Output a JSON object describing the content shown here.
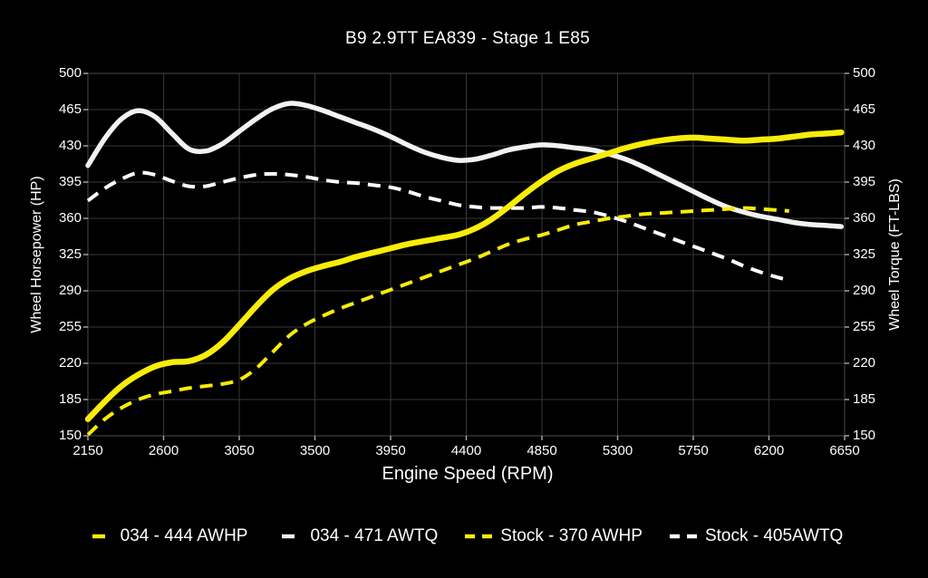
{
  "chart_data": {
    "type": "line",
    "title": "B9 2.9TT EA839 - Stage 1 E85",
    "xlabel": "Engine Speed (RPM)",
    "ylabel_left": "Wheel Horsepower (HP)",
    "ylabel_right": "Wheel Torque (FT-LBS)",
    "xlim": [
      2150,
      6650
    ],
    "ylim": [
      150,
      500
    ],
    "x_ticks": [
      2150,
      2600,
      3050,
      3500,
      3950,
      4400,
      4850,
      5300,
      5750,
      6200,
      6650
    ],
    "y_ticks": [
      500,
      465,
      430,
      395,
      360,
      325,
      290,
      255,
      220,
      185,
      150
    ],
    "grid": true,
    "legend_position": "bottom",
    "background": "#000000",
    "colors": {
      "grid": "#383838",
      "border": "#4a4a4a",
      "tick": "#aaaaaa",
      "text": "#ffffff",
      "yellow": "#f7ec0a",
      "white": "#f2f2f2"
    },
    "series": [
      {
        "name": "034 - 444 AWHP",
        "color": "#f7ec0a",
        "style": "solid",
        "width": 6.5,
        "points": [
          [
            2150,
            166
          ],
          [
            2250,
            183
          ],
          [
            2350,
            198
          ],
          [
            2450,
            209
          ],
          [
            2550,
            217
          ],
          [
            2650,
            221
          ],
          [
            2750,
            222
          ],
          [
            2850,
            228
          ],
          [
            2950,
            240
          ],
          [
            3050,
            257
          ],
          [
            3150,
            275
          ],
          [
            3250,
            291
          ],
          [
            3350,
            302
          ],
          [
            3450,
            309
          ],
          [
            3550,
            314
          ],
          [
            3650,
            318
          ],
          [
            3750,
            323
          ],
          [
            3850,
            327
          ],
          [
            3950,
            331
          ],
          [
            4050,
            335
          ],
          [
            4150,
            338
          ],
          [
            4250,
            341
          ],
          [
            4350,
            344
          ],
          [
            4450,
            350
          ],
          [
            4550,
            359
          ],
          [
            4650,
            371
          ],
          [
            4750,
            384
          ],
          [
            4850,
            396
          ],
          [
            4950,
            406
          ],
          [
            5050,
            413
          ],
          [
            5150,
            418
          ],
          [
            5250,
            423
          ],
          [
            5350,
            428
          ],
          [
            5450,
            432
          ],
          [
            5550,
            435
          ],
          [
            5650,
            437
          ],
          [
            5750,
            438
          ],
          [
            5850,
            437
          ],
          [
            5950,
            436
          ],
          [
            6050,
            435
          ],
          [
            6150,
            436
          ],
          [
            6250,
            437
          ],
          [
            6350,
            439
          ],
          [
            6450,
            441
          ],
          [
            6550,
            442
          ],
          [
            6630,
            443
          ]
        ]
      },
      {
        "name": "034 - 471 AWTQ",
        "color": "#f2f2f2",
        "style": "solid",
        "width": 5.5,
        "points": [
          [
            2150,
            411
          ],
          [
            2250,
            437
          ],
          [
            2350,
            456
          ],
          [
            2450,
            464
          ],
          [
            2550,
            458
          ],
          [
            2650,
            442
          ],
          [
            2750,
            427
          ],
          [
            2850,
            425
          ],
          [
            2950,
            432
          ],
          [
            3050,
            444
          ],
          [
            3150,
            456
          ],
          [
            3250,
            466
          ],
          [
            3350,
            471
          ],
          [
            3450,
            469
          ],
          [
            3550,
            464
          ],
          [
            3650,
            458
          ],
          [
            3750,
            452
          ],
          [
            3850,
            446
          ],
          [
            3950,
            439
          ],
          [
            4050,
            431
          ],
          [
            4150,
            424
          ],
          [
            4250,
            419
          ],
          [
            4350,
            416
          ],
          [
            4450,
            417
          ],
          [
            4550,
            421
          ],
          [
            4650,
            426
          ],
          [
            4750,
            429
          ],
          [
            4850,
            431
          ],
          [
            4950,
            430
          ],
          [
            5050,
            428
          ],
          [
            5150,
            426
          ],
          [
            5250,
            422
          ],
          [
            5350,
            417
          ],
          [
            5450,
            410
          ],
          [
            5550,
            402
          ],
          [
            5650,
            394
          ],
          [
            5750,
            386
          ],
          [
            5850,
            378
          ],
          [
            5950,
            371
          ],
          [
            6050,
            366
          ],
          [
            6150,
            362
          ],
          [
            6250,
            359
          ],
          [
            6350,
            356
          ],
          [
            6450,
            354
          ],
          [
            6550,
            353
          ],
          [
            6630,
            352
          ]
        ]
      },
      {
        "name": "Stock - 370 AWHP",
        "color": "#f7ec0a",
        "style": "dashed",
        "width": 4,
        "points": [
          [
            2150,
            151
          ],
          [
            2250,
            166
          ],
          [
            2350,
            177
          ],
          [
            2450,
            185
          ],
          [
            2550,
            190
          ],
          [
            2650,
            193
          ],
          [
            2750,
            196
          ],
          [
            2850,
            198
          ],
          [
            2950,
            200
          ],
          [
            3050,
            204
          ],
          [
            3150,
            215
          ],
          [
            3250,
            231
          ],
          [
            3350,
            247
          ],
          [
            3450,
            258
          ],
          [
            3550,
            266
          ],
          [
            3650,
            273
          ],
          [
            3750,
            279
          ],
          [
            3850,
            285
          ],
          [
            3950,
            291
          ],
          [
            4050,
            297
          ],
          [
            4150,
            303
          ],
          [
            4250,
            309
          ],
          [
            4350,
            315
          ],
          [
            4450,
            321
          ],
          [
            4550,
            328
          ],
          [
            4650,
            335
          ],
          [
            4750,
            340
          ],
          [
            4850,
            344
          ],
          [
            4950,
            349
          ],
          [
            5050,
            354
          ],
          [
            5150,
            357
          ],
          [
            5250,
            360
          ],
          [
            5350,
            362
          ],
          [
            5450,
            364
          ],
          [
            5550,
            365
          ],
          [
            5650,
            366
          ],
          [
            5750,
            367
          ],
          [
            5850,
            368
          ],
          [
            5950,
            369
          ],
          [
            6050,
            370
          ],
          [
            6150,
            369
          ],
          [
            6250,
            368
          ],
          [
            6320,
            367
          ]
        ]
      },
      {
        "name": "Stock - 405AWTQ",
        "color": "#ffffff",
        "style": "dashed",
        "width": 4,
        "points": [
          [
            2150,
            377
          ],
          [
            2250,
            389
          ],
          [
            2350,
            398
          ],
          [
            2450,
            404
          ],
          [
            2550,
            402
          ],
          [
            2650,
            396
          ],
          [
            2750,
            391
          ],
          [
            2850,
            391
          ],
          [
            2950,
            395
          ],
          [
            3050,
            399
          ],
          [
            3150,
            402
          ],
          [
            3250,
            403
          ],
          [
            3350,
            402
          ],
          [
            3450,
            400
          ],
          [
            3550,
            397
          ],
          [
            3650,
            395
          ],
          [
            3750,
            394
          ],
          [
            3850,
            392
          ],
          [
            3950,
            390
          ],
          [
            4050,
            386
          ],
          [
            4150,
            381
          ],
          [
            4250,
            377
          ],
          [
            4350,
            373
          ],
          [
            4450,
            371
          ],
          [
            4550,
            370
          ],
          [
            4650,
            370
          ],
          [
            4750,
            370
          ],
          [
            4850,
            371
          ],
          [
            4950,
            370
          ],
          [
            5050,
            368
          ],
          [
            5150,
            366
          ],
          [
            5250,
            362
          ],
          [
            5350,
            357
          ],
          [
            5450,
            351
          ],
          [
            5550,
            345
          ],
          [
            5650,
            339
          ],
          [
            5750,
            333
          ],
          [
            5850,
            327
          ],
          [
            5950,
            321
          ],
          [
            6050,
            314
          ],
          [
            6150,
            308
          ],
          [
            6250,
            303
          ],
          [
            6330,
            300
          ]
        ]
      }
    ]
  }
}
